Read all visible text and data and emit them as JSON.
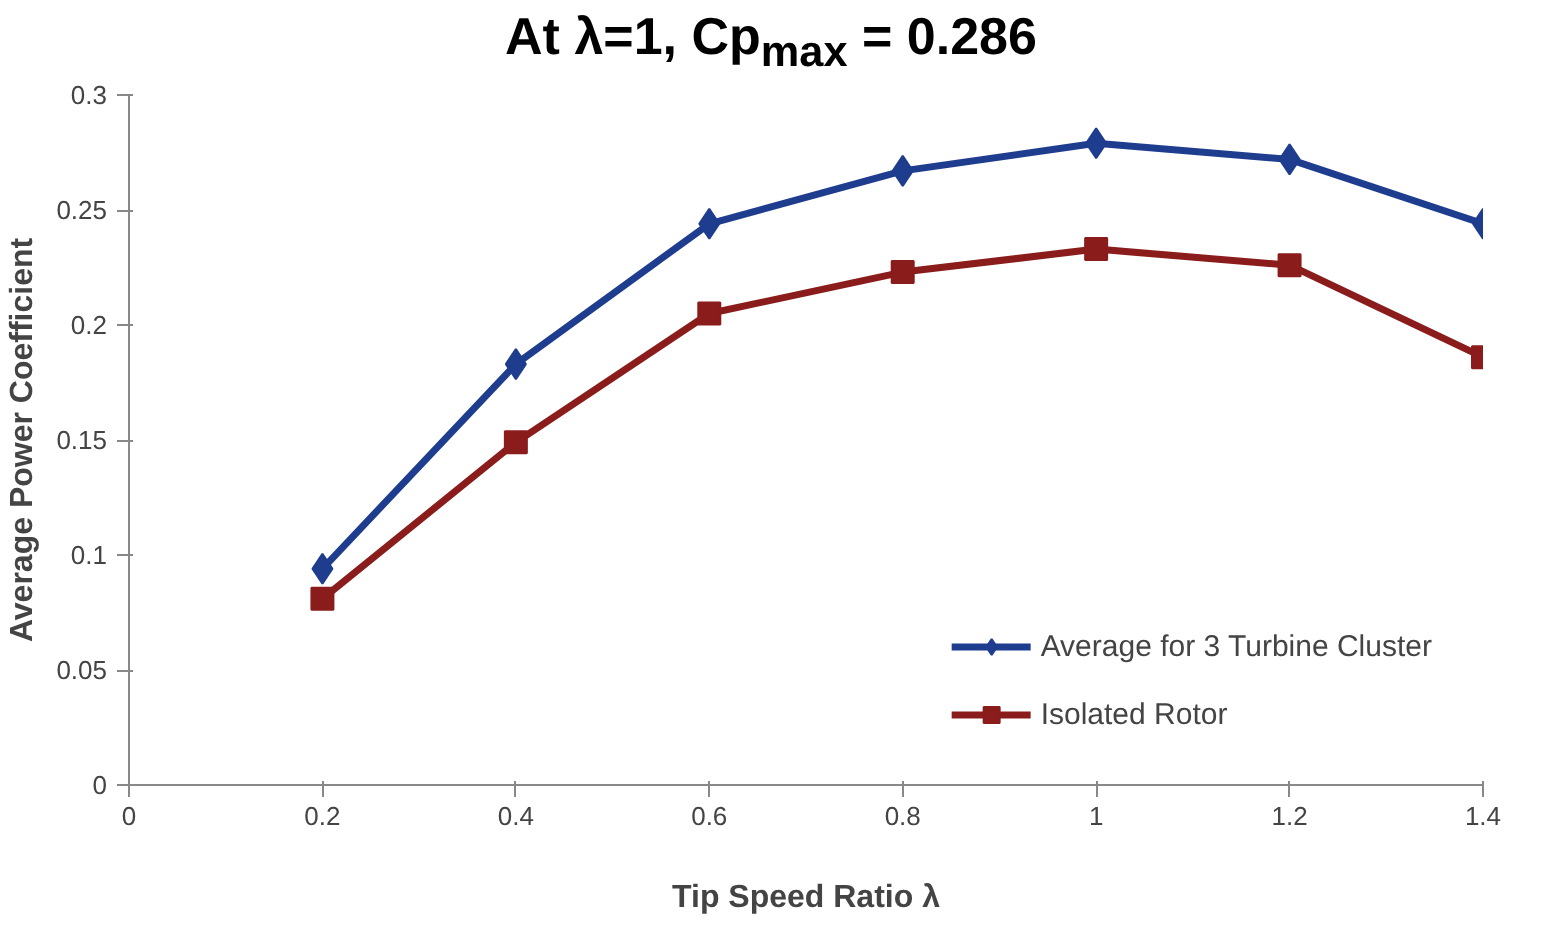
{
  "chart_data": {
    "type": "line",
    "title": "At λ=1, Cp$_{max}$ = 0.286",
    "xlabel": "Tip Speed Ratio λ",
    "ylabel": "Average Power Coefficient",
    "x": [
      0.2,
      0.4,
      0.6,
      0.8,
      1,
      1.2,
      1.4
    ],
    "series": [
      {
        "name": "Average for 3 Turbine Cluster",
        "color": "#1f3d8f",
        "marker": "diamond",
        "values": [
          0.094,
          0.183,
          0.244,
          0.267,
          0.279,
          0.272,
          0.244
        ]
      },
      {
        "name": "Isolated Rotor",
        "color": "#8b1c1c",
        "marker": "square",
        "values": [
          0.081,
          0.149,
          0.205,
          0.223,
          0.233,
          0.226,
          0.186
        ]
      }
    ],
    "xlim": [
      0,
      1.4
    ],
    "xticks": [
      0,
      0.2,
      0.4,
      0.6,
      0.8,
      1,
      1.2,
      1.4
    ],
    "ylim": [
      0,
      0.3
    ],
    "yticks": [
      0,
      0.05,
      0.1,
      0.15,
      0.2,
      0.25,
      0.3
    ],
    "grid": false,
    "legend": "bottom right",
    "line_style": "solid"
  }
}
